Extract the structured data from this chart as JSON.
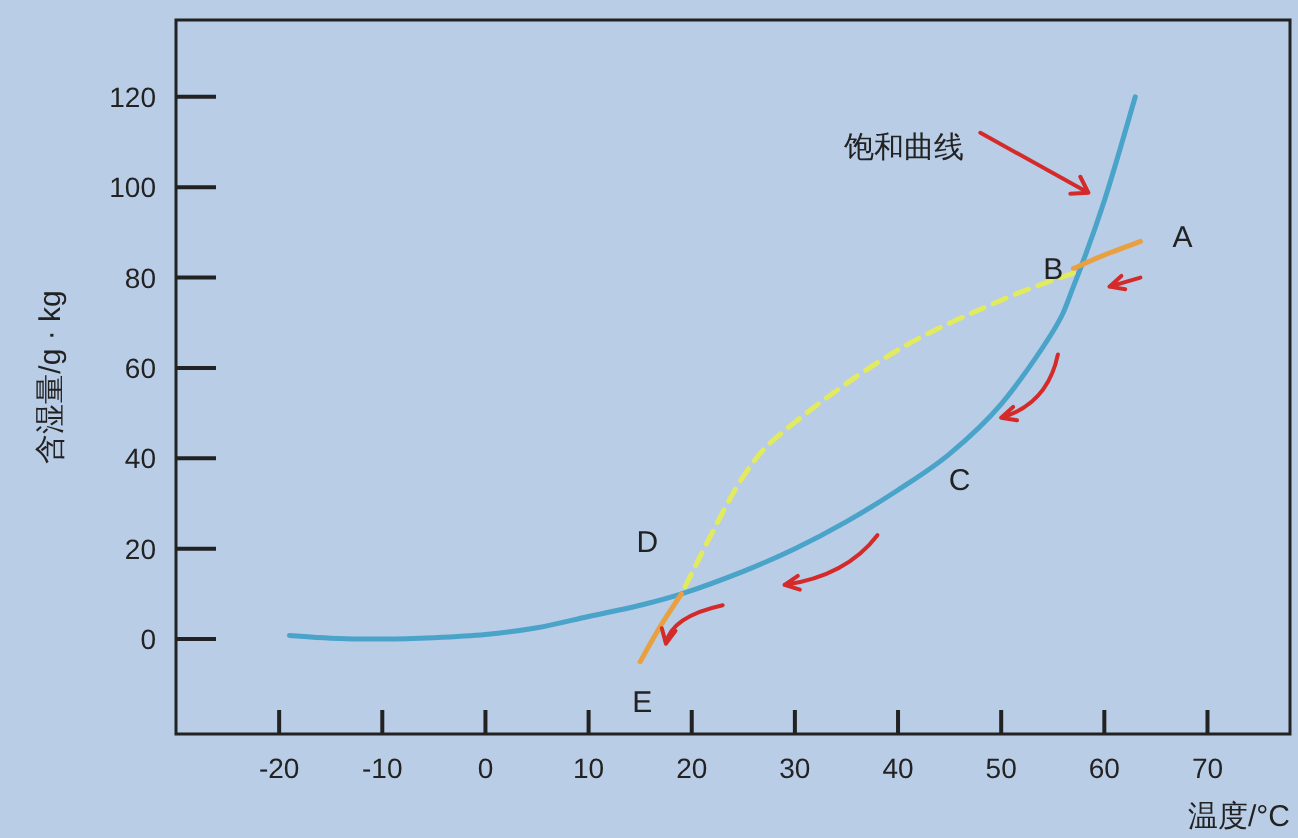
{
  "chart_data": {
    "type": "line",
    "xlabel": "温度/°C",
    "ylabel": "含湿量/g · kg",
    "xlim": [
      -30,
      78
    ],
    "ylim": [
      -21,
      137
    ],
    "xticks": [
      -20,
      -10,
      0,
      10,
      20,
      30,
      40,
      50,
      60,
      70
    ],
    "yticks": [
      0,
      20,
      40,
      60,
      80,
      100,
      120
    ],
    "grid": false,
    "marker": "none",
    "series": [
      {
        "color": "#4aa3c8",
        "line_style": "solid",
        "x": [
          -19,
          -15,
          -10,
          -5,
          0,
          5,
          10,
          15,
          19,
          25,
          30,
          35,
          40,
          45,
          50,
          55,
          57,
          60,
          63
        ],
        "values": [
          0.8,
          0.2,
          0,
          0.3,
          1,
          2.5,
          5,
          7.5,
          10,
          15,
          20,
          26,
          33,
          41,
          52,
          68,
          78,
          97,
          120
        ]
      },
      {
        "color": "#e8a040",
        "line_style": "solid",
        "x": [
          57,
          60,
          63.5
        ],
        "values": [
          82,
          85,
          88
        ]
      },
      {
        "color": "#e2ea60",
        "line_style": "dashed",
        "x": [
          57,
          50,
          40,
          30,
          25,
          19
        ],
        "values": [
          81,
          75,
          64,
          48,
          36,
          10
        ]
      },
      {
        "color": "#e8a040",
        "line_style": "solid",
        "x": [
          19,
          17,
          15
        ],
        "values": [
          10,
          3,
          -5
        ]
      }
    ],
    "annotations": [
      {
        "text": "饱和曲线",
        "x": 60,
        "y": 97
      },
      {
        "text": "A",
        "x": 63.5,
        "y": 88
      },
      {
        "text": "B",
        "x": 57,
        "y": 82
      },
      {
        "text": "C",
        "x": 45,
        "y": 41
      },
      {
        "text": "D",
        "x": 19,
        "y": 10
      },
      {
        "text": "E",
        "x": 15,
        "y": -5
      }
    ]
  }
}
